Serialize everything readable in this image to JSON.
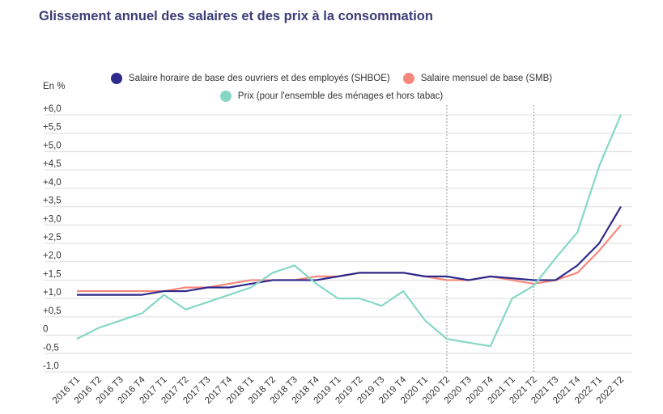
{
  "title": "Glissement annuel des salaires et des prix à la consommation",
  "chart_data": {
    "type": "line",
    "title": "Glissement annuel des salaires et des prix à la consommation",
    "ylabel": "En %",
    "ylim": [
      -1.0,
      6.0
    ],
    "yticks": [
      "-1,0",
      "-0,5",
      "0",
      "+0,5",
      "+1,0",
      "+1,5",
      "+2,0",
      "+2,5",
      "+3,0",
      "+3,5",
      "+4,0",
      "+4,5",
      "+5,0",
      "+5,5",
      "+6,0"
    ],
    "grid": true,
    "legend_position": "top",
    "categories": [
      "2016 T1",
      "2016 T2",
      "2016 T3",
      "2016 T4",
      "2017 T1",
      "2017 T2",
      "2017 T3",
      "2017 T4",
      "2018 T1",
      "2018 T2",
      "2018 T3",
      "2018 T4",
      "2019 T1",
      "2019 T2",
      "2019 T3",
      "2019 T4",
      "2020 T1",
      "2020 T2",
      "2020 T3",
      "2020 T4",
      "2021 T1",
      "2021 T2",
      "2021 T3",
      "2021 T4",
      "2022 T1",
      "2022 T2"
    ],
    "vertical_markers": [
      "2020 T2",
      "2021 T2"
    ],
    "series": [
      {
        "name": "Salaire horaire de base des ouvriers et des employés (SHBOE)",
        "color": "#2e2a8c",
        "values": [
          1.1,
          1.1,
          1.1,
          1.1,
          1.2,
          1.2,
          1.3,
          1.3,
          1.4,
          1.5,
          1.5,
          1.5,
          1.6,
          1.7,
          1.7,
          1.7,
          1.6,
          1.6,
          1.5,
          1.6,
          1.55,
          1.5,
          1.5,
          1.9,
          2.5,
          3.5
        ]
      },
      {
        "name": "Salaire mensuel de base (SMB)",
        "color": "#f7877a",
        "values": [
          1.2,
          1.2,
          1.2,
          1.2,
          1.2,
          1.3,
          1.3,
          1.4,
          1.5,
          1.5,
          1.5,
          1.6,
          1.6,
          1.7,
          1.7,
          1.7,
          1.6,
          1.5,
          1.5,
          1.6,
          1.5,
          1.4,
          1.5,
          1.7,
          2.3,
          3.0
        ]
      },
      {
        "name": "Prix (pour l'ensemble des ménages et hors tabac)",
        "color": "#86d8c6",
        "values": [
          -0.1,
          0.2,
          0.4,
          0.6,
          1.1,
          0.7,
          0.9,
          1.1,
          1.3,
          1.7,
          1.9,
          1.4,
          1.0,
          1.0,
          0.8,
          1.2,
          0.4,
          -0.1,
          -0.2,
          -0.3,
          1.0,
          1.35,
          2.1,
          2.8,
          4.6,
          6.0
        ]
      }
    ]
  }
}
